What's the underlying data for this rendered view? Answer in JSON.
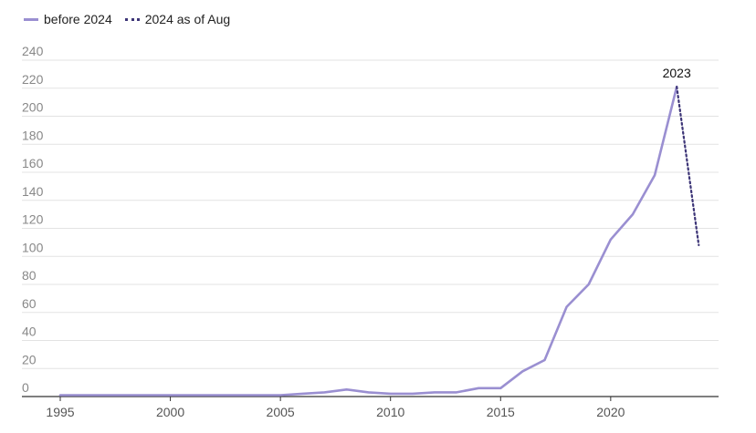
{
  "chart_data": {
    "type": "line",
    "title": "",
    "xlabel": "",
    "ylabel": "",
    "xlim": [
      1995,
      2024.9
    ],
    "ylim": [
      0,
      240
    ],
    "yticks": [
      0,
      20,
      40,
      60,
      80,
      100,
      120,
      140,
      160,
      180,
      200,
      220,
      240
    ],
    "xticks": [
      1995,
      2000,
      2005,
      2010,
      2015,
      2020
    ],
    "grid": true,
    "legend_position": "top-left",
    "colors": {
      "before": "#9a8fd1",
      "current": "#3d3577"
    },
    "series": [
      {
        "name": "before 2024",
        "style": "solid",
        "x": [
          1995,
          1996,
          1997,
          1998,
          1999,
          2000,
          2001,
          2002,
          2003,
          2004,
          2005,
          2006,
          2007,
          2008,
          2009,
          2010,
          2011,
          2012,
          2013,
          2014,
          2015,
          2016,
          2017,
          2018,
          2019,
          2020,
          2021,
          2022,
          2023
        ],
        "y": [
          1,
          1,
          1,
          1,
          1,
          1,
          1,
          1,
          1,
          1,
          1,
          2,
          3,
          5,
          3,
          2,
          2,
          3,
          3,
          6,
          6,
          18,
          26,
          64,
          80,
          112,
          130,
          158,
          221
        ]
      },
      {
        "name": "2024 as of Aug",
        "style": "dotted",
        "x": [
          2023,
          2024
        ],
        "y": [
          221,
          108
        ]
      }
    ],
    "annotations": [
      {
        "text": "2023",
        "x": 2023,
        "y": 221
      }
    ]
  }
}
